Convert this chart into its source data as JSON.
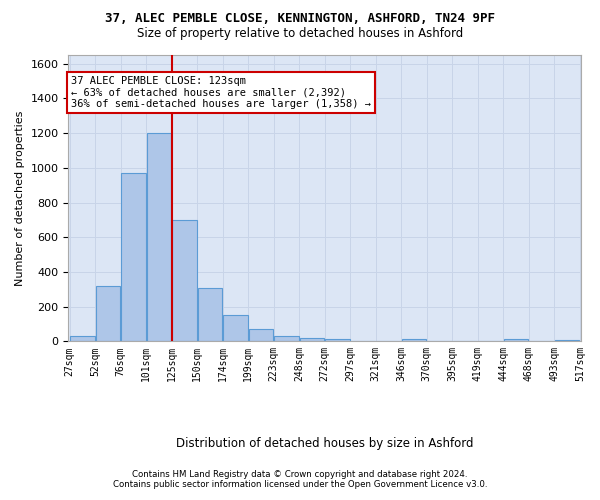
{
  "title_line1": "37, ALEC PEMBLE CLOSE, KENNINGTON, ASHFORD, TN24 9PF",
  "title_line2": "Size of property relative to detached houses in Ashford",
  "xlabel": "Distribution of detached houses by size in Ashford",
  "ylabel": "Number of detached properties",
  "footer_line1": "Contains HM Land Registry data © Crown copyright and database right 2024.",
  "footer_line2": "Contains public sector information licensed under the Open Government Licence v3.0.",
  "bar_values": [
    28,
    320,
    968,
    1200,
    700,
    305,
    152,
    70,
    28,
    18,
    15,
    0,
    0,
    12,
    0,
    0,
    0,
    12,
    0,
    10
  ],
  "bin_labels": [
    "27sqm",
    "52sqm",
    "76sqm",
    "101sqm",
    "125sqm",
    "150sqm",
    "174sqm",
    "199sqm",
    "223sqm",
    "248sqm",
    "272sqm",
    "297sqm",
    "321sqm",
    "346sqm",
    "370sqm",
    "395sqm",
    "419sqm",
    "444sqm",
    "468sqm",
    "493sqm",
    "517sqm"
  ],
  "bar_color": "#aec6e8",
  "bar_edge_color": "#5b9bd5",
  "grid_color": "#c8d4e8",
  "background_color": "#dce6f5",
  "annotation_line1": "37 ALEC PEMBLE CLOSE: 123sqm",
  "annotation_line2": "← 63% of detached houses are smaller (2,392)",
  "annotation_line3": "36% of semi-detached houses are larger (1,358) →",
  "vline_color": "#cc0000",
  "annotation_box_edgecolor": "#cc0000",
  "ylim": [
    0,
    1650
  ],
  "yticks": [
    0,
    200,
    400,
    600,
    800,
    1000,
    1200,
    1400,
    1600
  ]
}
